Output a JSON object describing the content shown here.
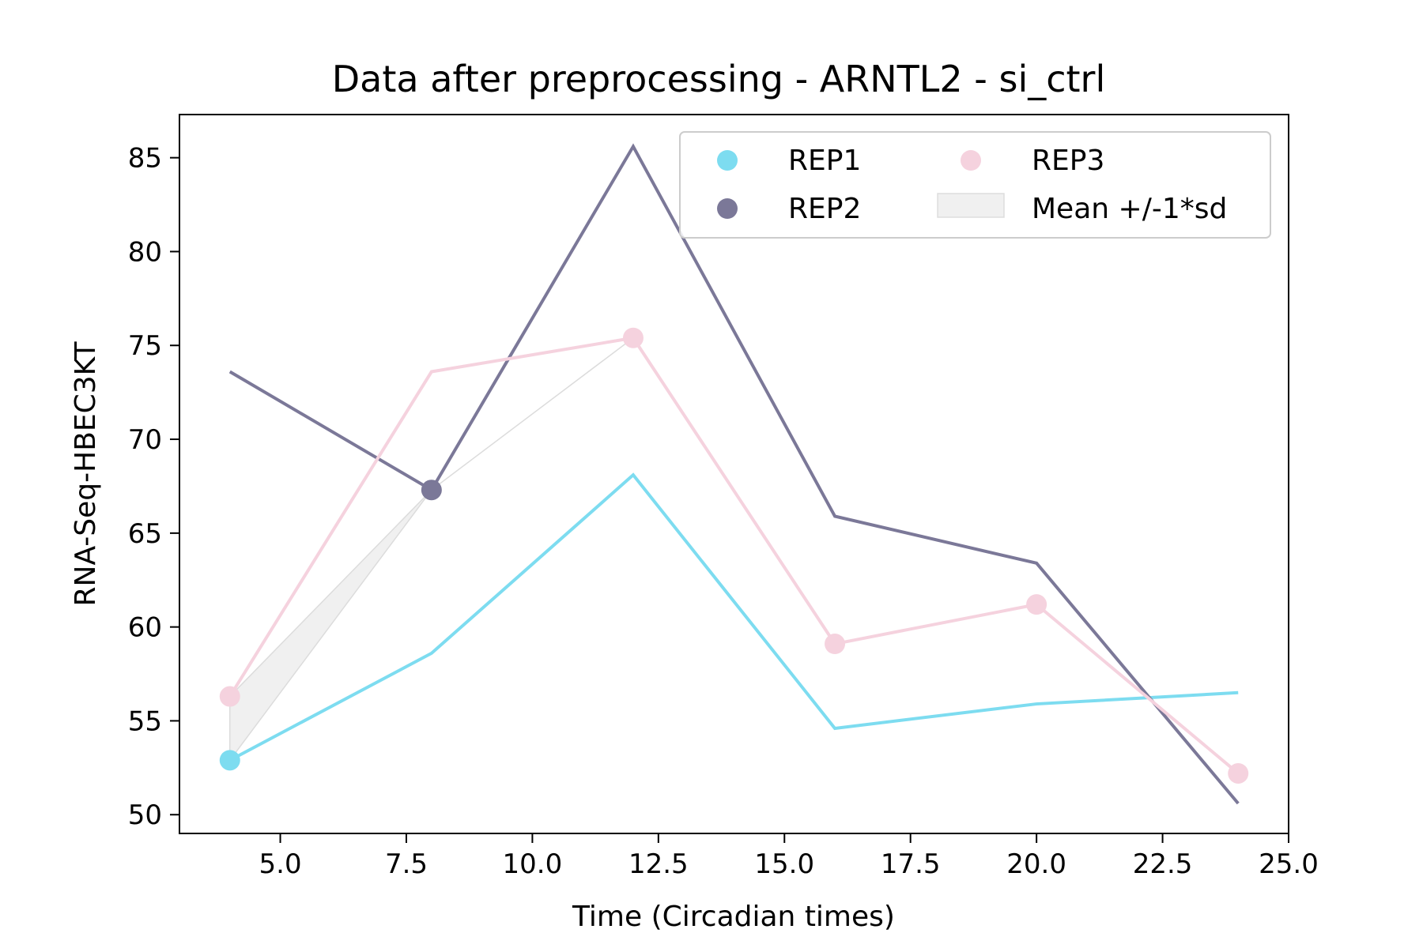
{
  "chart_data": {
    "type": "line",
    "title": "Data after preprocessing - ARNTL2 - si_ctrl",
    "xlabel": "Time (Circadian times)",
    "ylabel": "RNA-Seq-HBEC3KT",
    "xlim": [
      3.0,
      25.0
    ],
    "ylim": [
      49.0,
      87.3
    ],
    "xticks": [
      5.0,
      7.5,
      10.0,
      12.5,
      15.0,
      17.5,
      20.0,
      22.5,
      25.0
    ],
    "xtick_labels": [
      "5.0",
      "7.5",
      "10.0",
      "12.5",
      "15.0",
      "17.5",
      "20.0",
      "22.5",
      "25.0"
    ],
    "yticks": [
      50,
      55,
      60,
      65,
      70,
      75,
      80,
      85
    ],
    "ytick_labels": [
      "50",
      "55",
      "60",
      "65",
      "70",
      "75",
      "80",
      "85"
    ],
    "grid": false,
    "legend": {
      "placement": "top-right",
      "columns": 2,
      "entries": [
        "REP1",
        "REP2",
        "REP3",
        "Mean +/-1*sd"
      ]
    },
    "x": [
      4,
      8,
      12,
      16,
      20,
      24
    ],
    "series": [
      {
        "name": "REP1",
        "color": "#7ddcf0",
        "values": [
          52.9,
          58.6,
          68.1,
          54.6,
          55.9,
          56.5
        ],
        "markers": [
          [
            4,
            52.9
          ]
        ]
      },
      {
        "name": "REP2",
        "color": "#7b7898",
        "values": [
          73.6,
          67.3,
          85.6,
          65.9,
          63.4,
          50.6
        ],
        "markers": [
          [
            8,
            67.3
          ]
        ]
      },
      {
        "name": "REP3",
        "color": "#f5d2de",
        "values": [
          56.3,
          73.6,
          75.4,
          59.1,
          61.2,
          52.2
        ],
        "markers": [
          [
            4,
            56.3
          ],
          [
            12,
            75.4
          ],
          [
            16,
            59.1
          ],
          [
            20,
            61.2
          ],
          [
            24,
            52.2
          ]
        ]
      }
    ],
    "band": {
      "name": "Mean +/-1*sd",
      "color": "#f0f0f0",
      "x": [
        4,
        8,
        12
      ],
      "lower": [
        52.9,
        67.3,
        75.4
      ],
      "upper": [
        56.3,
        67.3,
        75.4
      ]
    }
  }
}
